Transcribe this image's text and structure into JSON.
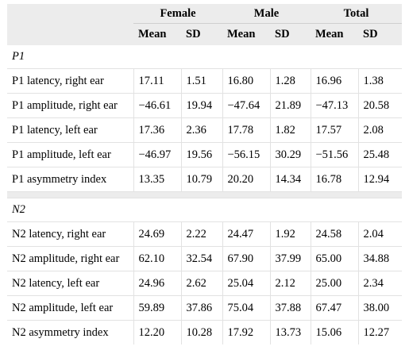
{
  "table": {
    "group_headers": [
      "Female",
      "Male",
      "Total"
    ],
    "sub_headers": [
      "Mean",
      "SD",
      "Mean",
      "SD",
      "Mean",
      "SD"
    ],
    "sections": [
      {
        "title": "P1",
        "rows": [
          {
            "label": "P1 latency, right ear",
            "values": [
              "17.11",
              "1.51",
              "16.80",
              "1.28",
              "16.96",
              "1.38"
            ]
          },
          {
            "label": "P1 amplitude, right ear",
            "values": [
              "−46.61",
              "19.94",
              "−47.64",
              "21.89",
              "−47.13",
              "20.58"
            ]
          },
          {
            "label": "P1 latency, left ear",
            "values": [
              "17.36",
              "2.36",
              "17.78",
              "1.82",
              "17.57",
              "2.08"
            ]
          },
          {
            "label": "P1 amplitude, left ear",
            "values": [
              "−46.97",
              "19.56",
              "−56.15",
              "30.29",
              "−51.56",
              "25.48"
            ]
          },
          {
            "label": "P1 asymmetry index",
            "values": [
              "13.35",
              "10.79",
              "20.20",
              "14.34",
              "16.78",
              "12.94"
            ]
          }
        ]
      },
      {
        "title": "N2",
        "rows": [
          {
            "label": "N2 latency, right ear",
            "values": [
              "24.69",
              "2.22",
              "24.47",
              "1.92",
              "24.58",
              "2.04"
            ]
          },
          {
            "label": "N2 amplitude, right ear",
            "values": [
              "62.10",
              "32.54",
              "67.90",
              "37.99",
              "65.00",
              "34.88"
            ]
          },
          {
            "label": "N2 latency, left ear",
            "values": [
              "24.96",
              "2.62",
              "25.04",
              "2.12",
              "25.00",
              "2.34"
            ]
          },
          {
            "label": "N2 amplitude, left ear",
            "values": [
              "59.89",
              "37.86",
              "75.04",
              "37.88",
              "67.47",
              "38.00"
            ]
          },
          {
            "label": "N2 asymmetry index",
            "values": [
              "12.20",
              "10.28",
              "17.92",
              "13.73",
              "15.06",
              "12.27"
            ]
          }
        ]
      }
    ]
  }
}
